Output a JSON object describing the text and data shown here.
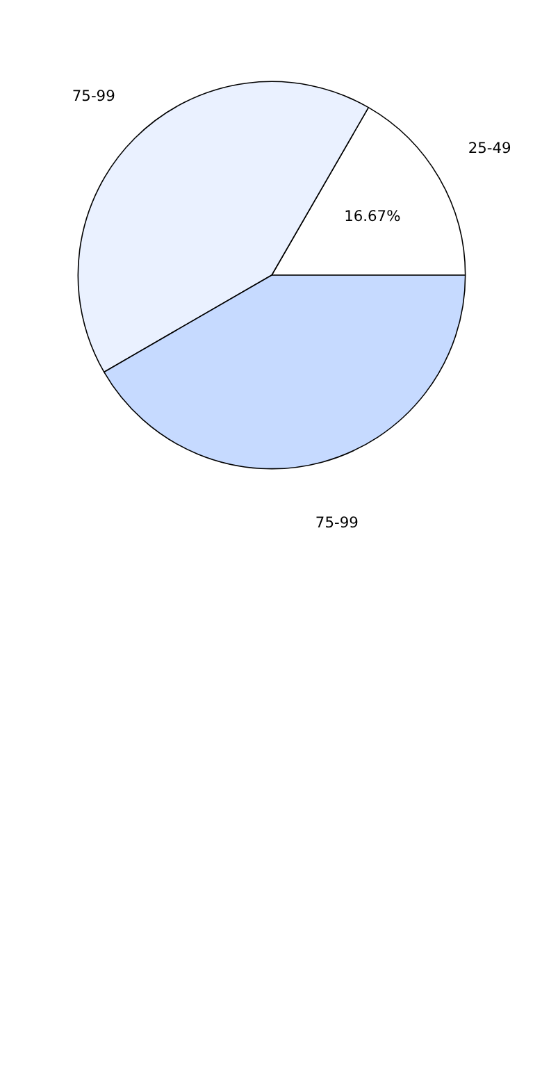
{
  "chart_data": {
    "type": "pie",
    "categories": [
      "25-49",
      "75-99",
      "75-99"
    ],
    "values": [
      16.67,
      41.67,
      41.66
    ],
    "colors": [
      "#ffffff",
      "#eaf1ff",
      "#c6daff"
    ],
    "value_labels": [
      "16.67%",
      null,
      null
    ]
  }
}
